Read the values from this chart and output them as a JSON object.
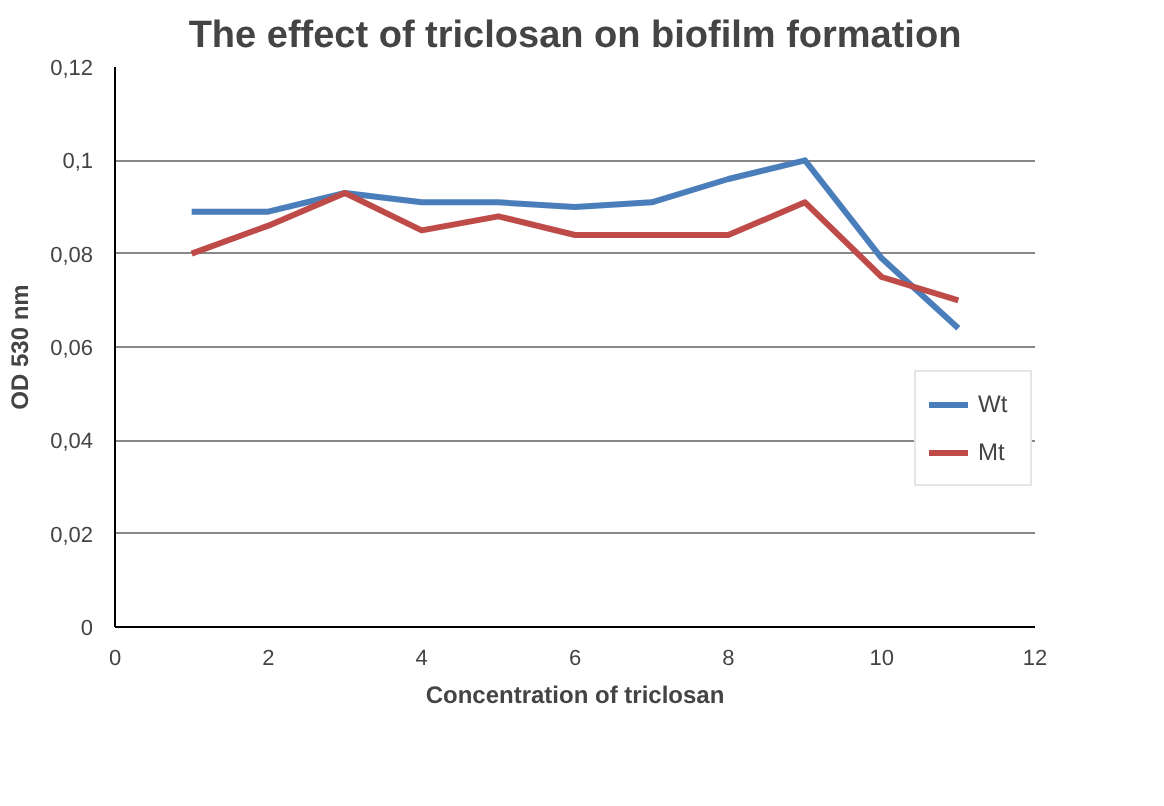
{
  "chart_data": {
    "type": "line",
    "title": "The effect of triclosan on biofilm formation",
    "xlabel": "Concentration of triclosan",
    "ylabel": "OD 530 nm",
    "x": [
      1,
      2,
      3,
      4,
      5,
      6,
      7,
      8,
      9,
      10,
      11
    ],
    "series": [
      {
        "name": "Wt",
        "color": "#4a7ebb",
        "values": [
          0.089,
          0.089,
          0.093,
          0.091,
          0.091,
          0.09,
          0.091,
          0.096,
          0.1,
          0.079,
          0.064
        ]
      },
      {
        "name": "Mt",
        "color": "#be4b48",
        "values": [
          0.08,
          0.086,
          0.093,
          0.085,
          0.088,
          0.084,
          0.084,
          0.084,
          0.091,
          0.075,
          0.07
        ]
      }
    ],
    "xlim": [
      0,
      12
    ],
    "xticks": [
      0,
      2,
      4,
      6,
      8,
      10,
      12
    ],
    "ylim": [
      0,
      0.12
    ],
    "yticks": [
      {
        "value": 0,
        "label": "0"
      },
      {
        "value": 0.02,
        "label": "0,02"
      },
      {
        "value": 0.04,
        "label": "0,04"
      },
      {
        "value": 0.06,
        "label": "0,06"
      },
      {
        "value": 0.08,
        "label": "0,08"
      },
      {
        "value": 0.1,
        "label": "0,1"
      },
      {
        "value": 0.12,
        "label": "0,12"
      }
    ],
    "grid": "y",
    "legend": "right",
    "marker": "none",
    "line_style": "solid"
  }
}
